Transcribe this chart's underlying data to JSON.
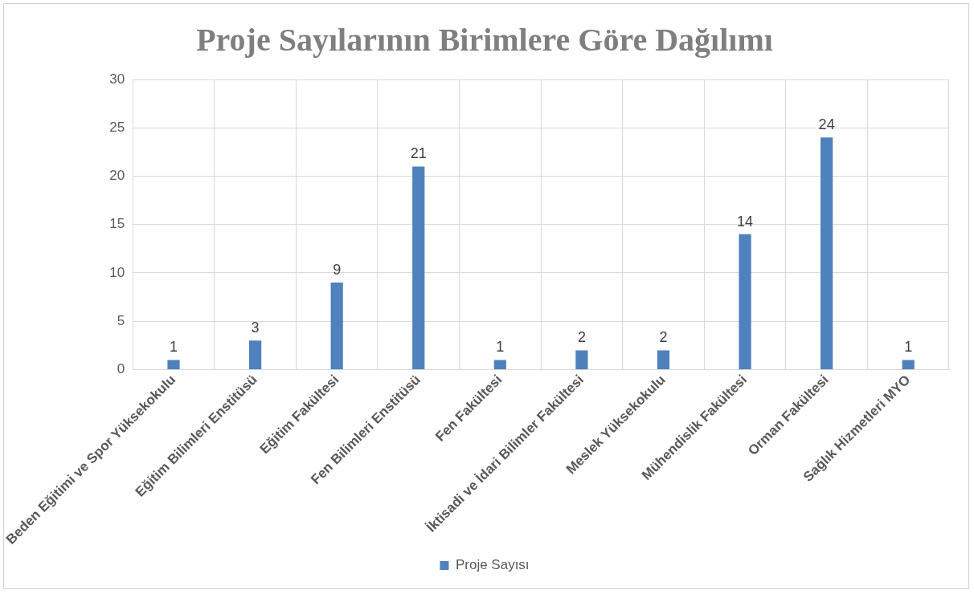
{
  "chart_data": {
    "type": "bar",
    "title": "Proje Sayılarının Birimlere Göre Dağılımı",
    "categories": [
      "Beden Eğitimi ve Spor Yüksekokulu",
      "Eğitim Bilimleri Enstitüsü",
      "Eğitim Fakültesi",
      "Fen Bilimleri Enstitüsü",
      "Fen Fakültesi",
      "İktisadi ve İdari Bilimler Fakültesi",
      "Meslek Yüksekokulu",
      "Mühendislik Fakültesi",
      "Orman Fakültesi",
      "Sağlık Hizmetleri MYO"
    ],
    "series": [
      {
        "name": "Proje Sayısı",
        "color": "#4f81bd",
        "values": [
          1,
          3,
          9,
          21,
          1,
          2,
          2,
          14,
          24,
          1
        ]
      }
    ],
    "ylim": [
      0,
      30
    ],
    "yticks": [
      0,
      5,
      10,
      15,
      20,
      25,
      30
    ],
    "grid": true,
    "legend": "bottom",
    "data_labels": true
  }
}
